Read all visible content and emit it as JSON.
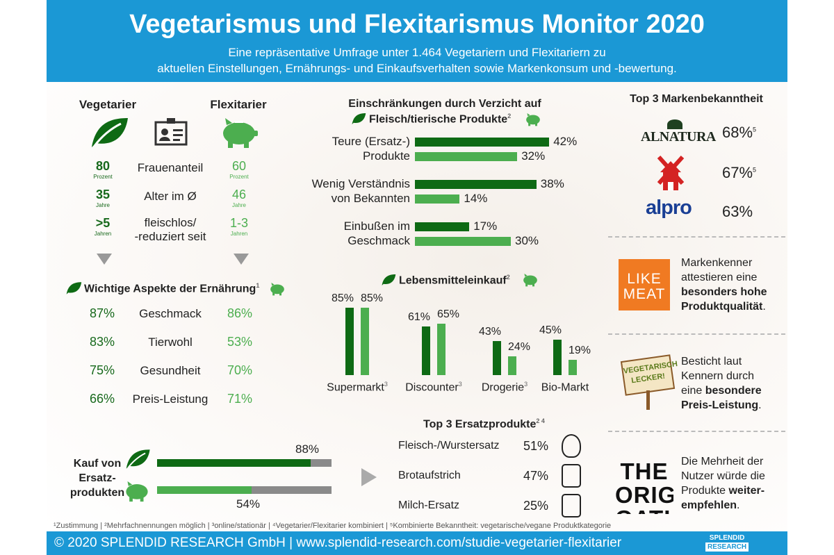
{
  "header": {
    "title": "Vegetarismus und Flexitarismus Monitor 2020",
    "subtitle_line1": "Eine repräsentative Umfrage unter 1.464 Vegetariern und Flexitariern zu",
    "subtitle_line2": "aktuellen Einstellungen, Ernährungs- und Einkaufsverhalten sowie Markenkonsum und -bewertung."
  },
  "colors": {
    "header": "#1b98d5",
    "vegetarier": "#0e6a14",
    "flexitarier": "#4cae4f"
  },
  "profile": {
    "veg_label": "Vegetarier",
    "flex_label": "Flexitarier",
    "rows": [
      {
        "veg": "80",
        "veg_unit": "Prozent",
        "label": "Frauenanteil",
        "flex": "60",
        "flex_unit": "Prozent"
      },
      {
        "veg": "35",
        "veg_unit": "Jahre",
        "label": "Alter im Ø",
        "flex": "46",
        "flex_unit": "Jahre"
      },
      {
        "veg": ">5",
        "veg_unit": "Jahren",
        "label": "fleischlos/",
        "label2": "-reduziert seit",
        "flex": "1-3",
        "flex_unit": "Jahren"
      }
    ]
  },
  "aspects": {
    "title": "Wichtige Aspekte der Ernährung",
    "sup": "1",
    "rows": [
      {
        "veg": "87%",
        "label": "Geschmack",
        "flex": "86%"
      },
      {
        "veg": "83%",
        "label": "Tierwohl",
        "flex": "53%"
      },
      {
        "veg": "75%",
        "label": "Gesundheit",
        "flex": "70%"
      },
      {
        "veg": "66%",
        "label": "Preis-Leistung",
        "flex": "71%"
      }
    ]
  },
  "kauf": {
    "label1": "Kauf von",
    "label2": "Ersatz-",
    "label3": "produkten",
    "veg": 88,
    "veg_label": "88%",
    "flex": 54,
    "flex_label": "54%"
  },
  "chart_data": [
    {
      "type": "bar",
      "orientation": "horizontal",
      "title": "Einschränkungen durch Verzicht auf Fleisch/tierische Produkte",
      "title_line1": "Einschränkungen durch Verzicht auf",
      "title_line2": "Fleisch/tierische Produkte",
      "sup": "2",
      "categories": [
        [
          "Teure (Ersatz-)",
          "Produkte"
        ],
        [
          "Wenig Verständnis",
          "von Bekannten"
        ],
        [
          "Einbußen im",
          "Geschmack"
        ]
      ],
      "series": [
        {
          "values": [
            42,
            38,
            17
          ],
          "labels": [
            "42%",
            "38%",
            "17%"
          ]
        },
        {
          "values": [
            32,
            14,
            30
          ],
          "labels": [
            "32%",
            "14%",
            "30%"
          ]
        }
      ]
    },
    {
      "type": "bar",
      "title": "Lebensmitteleinkauf",
      "sup": "2",
      "categories": [
        "Supermarkt",
        "Discounter",
        "Drogerie",
        "Bio-Markt"
      ],
      "category_sups": [
        "3",
        "3",
        "3",
        ""
      ],
      "series": [
        {
          "values": [
            85,
            61,
            43,
            45
          ],
          "labels": [
            "85%",
            "61%",
            "43%",
            "45%"
          ]
        },
        {
          "values": [
            85,
            65,
            24,
            19
          ],
          "labels": [
            "85%",
            "65%",
            "24%",
            "19%"
          ]
        }
      ]
    }
  ],
  "ersatz": {
    "title": "Top 3 Ersatzprodukte",
    "sup": "2 4",
    "rows": [
      {
        "label": "Fleisch-/Wurstersatz",
        "pct": "51%",
        "icon": "chicken-leg-icon"
      },
      {
        "label": "Brotaufstrich",
        "pct": "47%",
        "icon": "jar-icon"
      },
      {
        "label": "Milch-Ersatz",
        "pct": "25%",
        "icon": "milk-carton-icon"
      }
    ]
  },
  "brands": {
    "title": "Top 3 Markenbekanntheit",
    "rows": [
      {
        "name": "ALNATURA",
        "pct": "68%",
        "sup": "5"
      },
      {
        "name": "Windmill",
        "pct": "67%",
        "sup": "5"
      },
      {
        "name": "alpro",
        "pct": "63%",
        "sup": ""
      }
    ]
  },
  "notes": [
    {
      "logo": "LIKE MEAT",
      "l1": "Markenkenner",
      "l2": "attestieren eine",
      "l3": "besonders hohe",
      "l4": "Produktqualität",
      "l4b": "."
    },
    {
      "logo": "VEGETARISCH LECKER!",
      "l1": "Besticht laut",
      "l2": "Kennern durch",
      "l3": "eine ",
      "l3b": "besondere",
      "l4": "Preis-Leistung",
      "l4b": "."
    },
    {
      "logo": "THE ORIGINAL OATLY!",
      "l1": "Die Mehrheit der",
      "l2": "Nutzer würde die",
      "l3": "Produkte ",
      "l3b": "weiter-",
      "l4": "empfehlen",
      "l4b": "."
    }
  ],
  "footnotes": "¹Zustimmung | ²Mehrfachnennungen möglich | ³online/stationär | ⁴Vegetarier/Flexitarier kombiniert | ⁵Kombinierte Bekanntheit: vegetarische/vegane Produktkategorie",
  "footer": {
    "text": "© 2020 SPLENDID RESEARCH GmbH | www.splendid-research.com/studie-vegetarier-flexitarier",
    "logo1": "SPLENDID",
    "logo2": "RESEARCH"
  }
}
